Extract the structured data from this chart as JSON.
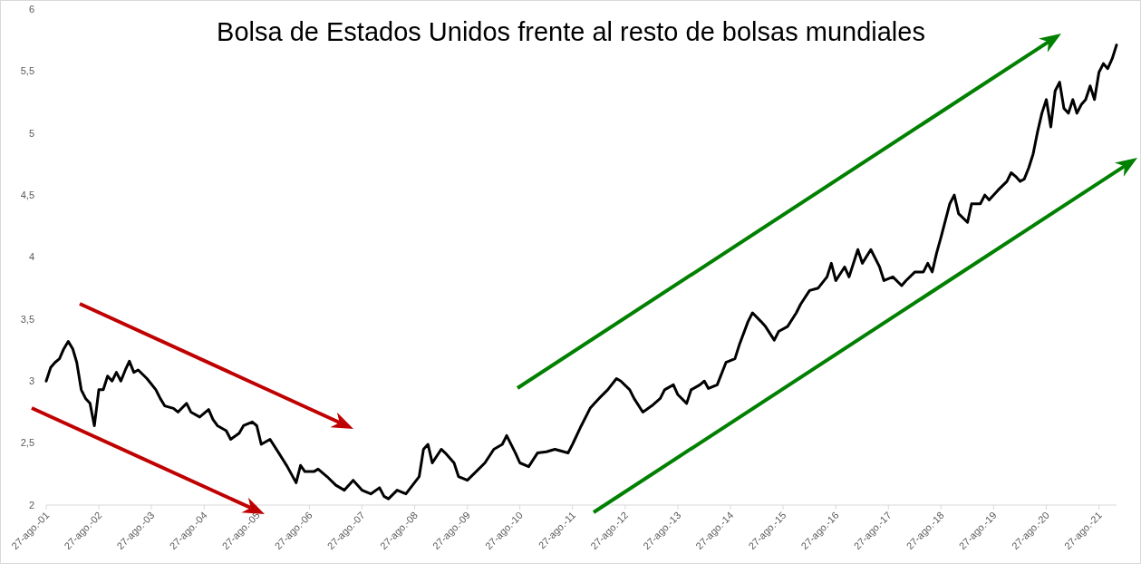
{
  "chart_data": {
    "type": "line",
    "title": "Bolsa de Estados Unidos frente al resto de bolsas mundiales",
    "x": [
      "2001-08-27",
      "2001-09-27",
      "2001-10-27",
      "2001-11-27",
      "2001-12-27",
      "2002-01-27",
      "2002-02-27",
      "2002-03-27",
      "2002-04-27",
      "2002-05-27",
      "2002-06-27",
      "2002-07-27",
      "2002-08-27",
      "2002-09-27",
      "2002-10-27",
      "2002-11-27",
      "2002-12-27",
      "2003-01-27",
      "2003-02-27",
      "2003-03-27",
      "2003-04-27",
      "2003-05-27",
      "2003-07-27",
      "2003-09-27",
      "2003-10-27",
      "2003-11-27",
      "2004-01-27",
      "2004-02-27",
      "2004-04-27",
      "2004-05-27",
      "2004-07-27",
      "2004-09-27",
      "2004-10-27",
      "2004-11-27",
      "2005-01-27",
      "2005-02-27",
      "2005-04-27",
      "2005-05-27",
      "2005-07-27",
      "2005-08-27",
      "2005-09-27",
      "2005-11-27",
      "2006-01-27",
      "2006-03-27",
      "2006-05-27",
      "2006-06-27",
      "2006-07-27",
      "2006-09-27",
      "2006-10-27",
      "2006-12-27",
      "2007-02-27",
      "2007-04-27",
      "2007-06-27",
      "2007-08-27",
      "2007-10-27",
      "2007-12-27",
      "2008-01-27",
      "2008-02-27",
      "2008-04-27",
      "2008-06-27",
      "2008-09-27",
      "2008-10-27",
      "2008-11-27",
      "2008-12-27",
      "2009-02-27",
      "2009-03-27",
      "2009-05-27",
      "2009-06-27",
      "2009-08-27",
      "2009-10-27",
      "2009-12-27",
      "2010-02-27",
      "2010-04-27",
      "2010-05-27",
      "2010-07-27",
      "2010-08-27",
      "2010-10-27",
      "2010-12-27",
      "2011-02-27",
      "2011-04-27",
      "2011-07-27",
      "2011-08-27",
      "2011-10-27",
      "2011-12-27",
      "2012-01-27",
      "2012-02-27",
      "2012-04-27",
      "2012-06-27",
      "2012-07-27",
      "2012-09-27",
      "2012-10-27",
      "2012-12-27",
      "2013-02-27",
      "2013-04-27",
      "2013-05-27",
      "2013-07-27",
      "2013-08-27",
      "2013-10-27",
      "2013-11-27",
      "2014-01-27",
      "2014-02-27",
      "2014-03-27",
      "2014-05-27",
      "2014-07-27",
      "2014-09-27",
      "2014-10-27",
      "2014-12-27",
      "2015-01-27",
      "2015-03-27",
      "2015-04-27",
      "2015-06-27",
      "2015-07-27",
      "2015-09-27",
      "2015-11-27",
      "2015-12-27",
      "2016-02-27",
      "2016-04-27",
      "2016-06-27",
      "2016-07-27",
      "2016-08-27",
      "2016-10-27",
      "2016-11-27",
      "2017-01-27",
      "2017-02-27",
      "2017-04-27",
      "2017-06-27",
      "2017-07-27",
      "2017-09-27",
      "2017-11-27",
      "2017-12-27",
      "2018-02-27",
      "2018-04-27",
      "2018-05-27",
      "2018-06-27",
      "2018-07-27",
      "2018-08-27",
      "2018-10-27",
      "2018-11-27",
      "2018-12-27",
      "2019-02-27",
      "2019-03-27",
      "2019-05-27",
      "2019-06-27",
      "2019-07-27",
      "2019-09-27",
      "2019-11-27",
      "2019-12-27",
      "2020-01-27",
      "2020-02-27",
      "2020-03-27",
      "2020-04-27",
      "2020-05-27",
      "2020-06-27",
      "2020-07-27",
      "2020-08-27",
      "2020-09-27",
      "2020-10-27",
      "2020-11-27",
      "2020-12-27",
      "2021-01-27",
      "2021-02-27",
      "2021-03-27",
      "2021-04-27",
      "2021-05-27",
      "2021-06-27",
      "2021-07-27",
      "2021-08-27",
      "2021-09-27",
      "2021-10-27",
      "2021-11-27",
      "2021-12-27"
    ],
    "series": [
      {
        "color": "#000000",
        "values": [
          3.0,
          3.11,
          3.15,
          3.18,
          3.26,
          3.32,
          3.26,
          3.15,
          2.93,
          2.86,
          2.82,
          2.64,
          2.93,
          2.93,
          3.04,
          3.0,
          3.07,
          3.0,
          3.09,
          3.16,
          3.07,
          3.09,
          3.02,
          2.93,
          2.86,
          2.8,
          2.78,
          2.75,
          2.82,
          2.75,
          2.71,
          2.77,
          2.69,
          2.64,
          2.6,
          2.53,
          2.58,
          2.64,
          2.67,
          2.64,
          2.49,
          2.53,
          2.42,
          2.31,
          2.18,
          2.32,
          2.27,
          2.27,
          2.29,
          2.23,
          2.16,
          2.12,
          2.2,
          2.12,
          2.09,
          2.14,
          2.07,
          2.05,
          2.12,
          2.09,
          2.23,
          2.45,
          2.49,
          2.34,
          2.45,
          2.42,
          2.34,
          2.23,
          2.2,
          2.27,
          2.34,
          2.45,
          2.49,
          2.56,
          2.42,
          2.34,
          2.31,
          2.42,
          2.43,
          2.45,
          2.42,
          2.49,
          2.64,
          2.78,
          2.82,
          2.86,
          2.93,
          3.02,
          3.0,
          2.93,
          2.86,
          2.75,
          2.8,
          2.86,
          2.93,
          2.97,
          2.89,
          2.82,
          2.93,
          2.97,
          3.0,
          2.94,
          2.97,
          3.15,
          3.18,
          3.29,
          3.48,
          3.55,
          3.48,
          3.44,
          3.33,
          3.4,
          3.44,
          3.55,
          3.62,
          3.73,
          3.75,
          3.84,
          3.95,
          3.81,
          3.92,
          3.84,
          4.06,
          3.95,
          4.06,
          3.92,
          3.81,
          3.84,
          3.77,
          3.81,
          3.88,
          3.88,
          3.95,
          3.88,
          4.03,
          4.16,
          4.43,
          4.5,
          4.35,
          4.28,
          4.43,
          4.43,
          4.5,
          4.46,
          4.54,
          4.61,
          4.68,
          4.65,
          4.61,
          4.63,
          4.72,
          4.83,
          5.01,
          5.16,
          5.27,
          5.05,
          5.34,
          5.41,
          5.2,
          5.16,
          5.27,
          5.16,
          5.23,
          5.27,
          5.38,
          5.27,
          5.49,
          5.56,
          5.52,
          5.6,
          5.71
        ]
      }
    ],
    "xlim": [
      "2001-08-27",
      "2021-12-27"
    ],
    "xticks": [
      {
        "value": "2001-08-27",
        "label": "27-ago.-01"
      },
      {
        "value": "2002-08-27",
        "label": "27-ago.-02"
      },
      {
        "value": "2003-08-27",
        "label": "27-ago.-03"
      },
      {
        "value": "2004-08-27",
        "label": "27-ago.-04"
      },
      {
        "value": "2005-08-27",
        "label": "27-ago.-05"
      },
      {
        "value": "2006-08-27",
        "label": "27-ago.-06"
      },
      {
        "value": "2007-08-27",
        "label": "27-ago.-07"
      },
      {
        "value": "2008-08-27",
        "label": "27-ago.-08"
      },
      {
        "value": "2009-08-27",
        "label": "27-ago.-09"
      },
      {
        "value": "2010-08-27",
        "label": "27-ago.-10"
      },
      {
        "value": "2011-08-27",
        "label": "27-ago.-11"
      },
      {
        "value": "2012-08-27",
        "label": "27-ago.-12"
      },
      {
        "value": "2013-08-27",
        "label": "27-ago.-13"
      },
      {
        "value": "2014-08-27",
        "label": "27-ago.-14"
      },
      {
        "value": "2015-08-27",
        "label": "27-ago.-15"
      },
      {
        "value": "2016-08-27",
        "label": "27-ago.-16"
      },
      {
        "value": "2017-08-27",
        "label": "27-ago.-17"
      },
      {
        "value": "2018-08-27",
        "label": "27-ago.-18"
      },
      {
        "value": "2019-08-27",
        "label": "27-ago.-19"
      },
      {
        "value": "2020-08-27",
        "label": "27-ago.-20"
      },
      {
        "value": "2021-08-27",
        "label": "27-ago.-21"
      }
    ],
    "ylim": [
      2,
      6
    ],
    "yticks": [
      2,
      {
        "value": 2.5,
        "label": "2,5"
      },
      3,
      {
        "value": 3.5,
        "label": "3,5"
      },
      4,
      {
        "value": 4.5,
        "label": "4,5"
      },
      5,
      {
        "value": 5.5,
        "label": "5,5"
      },
      6
    ]
  }
}
